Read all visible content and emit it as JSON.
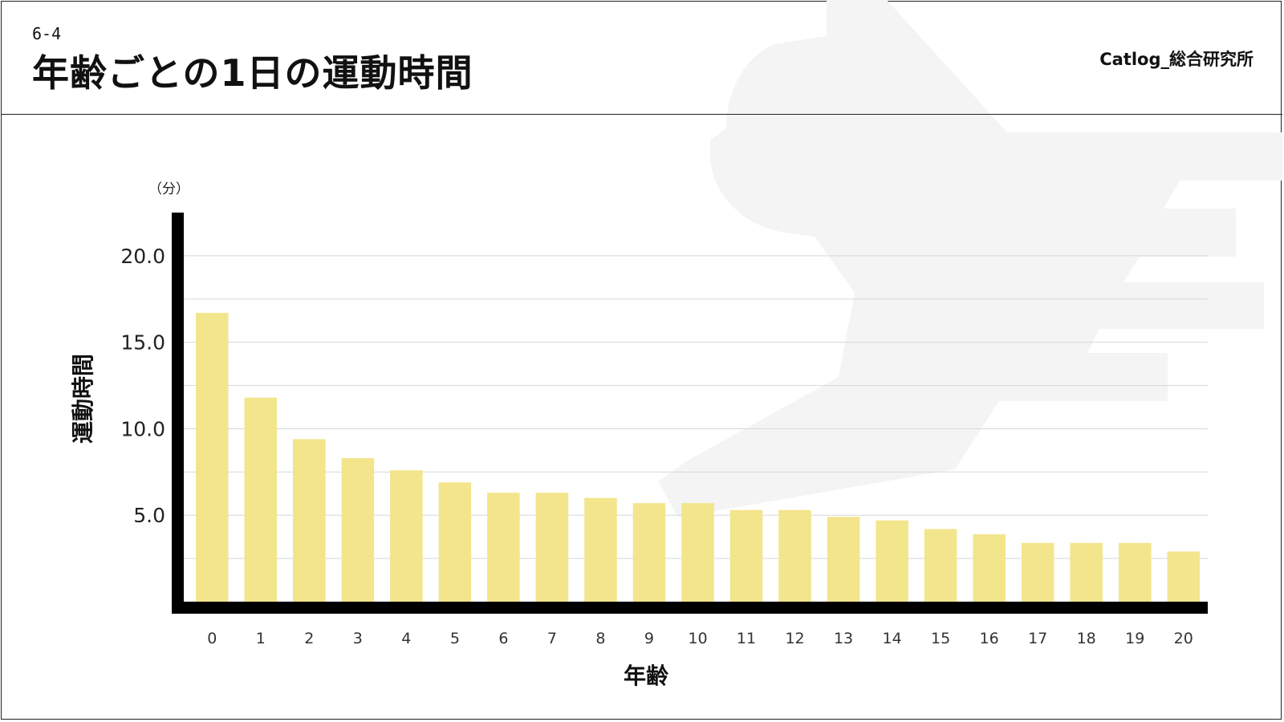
{
  "header": {
    "section": "6-4",
    "title": "年齢ごとの1日の運動時間",
    "brand": "Catlog_総合研究所"
  },
  "colors": {
    "bar": "#F3E58C",
    "axis": "#000000",
    "grid": "#D8D8D8",
    "watermark": "#F4F4F4"
  },
  "chart_data": {
    "type": "bar",
    "unit_label": "（分）",
    "xlabel": "年齢",
    "ylabel": "運動時間",
    "categories": [
      "0",
      "1",
      "2",
      "3",
      "4",
      "5",
      "6",
      "7",
      "8",
      "9",
      "10",
      "11",
      "12",
      "13",
      "14",
      "15",
      "16",
      "17",
      "18",
      "19",
      "20"
    ],
    "values": [
      16.7,
      11.8,
      9.4,
      8.3,
      7.6,
      6.9,
      6.3,
      6.3,
      6.0,
      5.7,
      5.7,
      5.3,
      5.3,
      4.9,
      4.7,
      4.2,
      3.9,
      3.4,
      3.4,
      3.4,
      2.9
    ],
    "ylim": [
      0,
      22.5
    ],
    "yticks": [
      5.0,
      10.0,
      15.0,
      20.0
    ],
    "ytick_labels": [
      "5.0",
      "10.0",
      "15.0",
      "20.0"
    ],
    "grid": true,
    "legend": "none"
  }
}
